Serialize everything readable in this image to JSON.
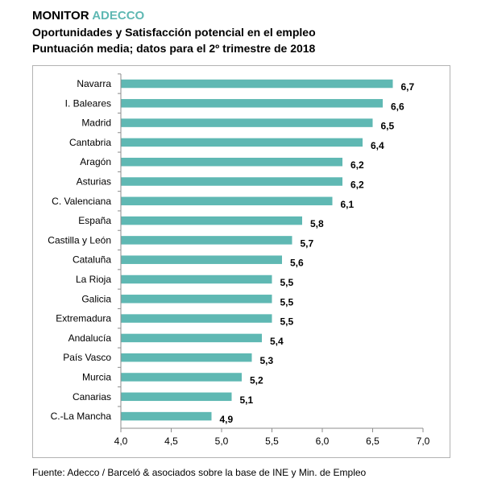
{
  "header": {
    "brand_main": "MONITOR",
    "brand_accent": "ADECCO",
    "title": "Oportunidades y Satisfacción potencial en el empleo",
    "subtitle": "Puntuación media; datos para el 2º trimestre de 2018"
  },
  "source": "Fuente: Adecco / Barceló & asociados sobre la base de INE y Min. de Empleo",
  "colors": {
    "bar": "#5fb8b3",
    "accent": "#5fb8b3",
    "axis": "#8c8c8c"
  },
  "chart_data": {
    "type": "bar",
    "orientation": "horizontal",
    "title": "Oportunidades y Satisfacción potencial en el empleo",
    "subtitle": "Puntuación media; datos para el 2º trimestre de 2018",
    "categories": [
      "Navarra",
      "I. Baleares",
      "Madrid",
      "Cantabria",
      "Aragón",
      "Asturias",
      "C. Valenciana",
      "España",
      "Castilla y León",
      "Cataluña",
      "La Rioja",
      "Galicia",
      "Extremadura",
      "Andalucía",
      "País Vasco",
      "Murcia",
      "Canarias",
      "C.-La Mancha"
    ],
    "values": [
      6.7,
      6.6,
      6.5,
      6.4,
      6.2,
      6.2,
      6.1,
      5.8,
      5.7,
      5.6,
      5.5,
      5.5,
      5.5,
      5.4,
      5.3,
      5.2,
      5.1,
      4.9
    ],
    "value_labels": [
      "6,7",
      "6,6",
      "6,5",
      "6,4",
      "6,2",
      "6,2",
      "6,1",
      "5,8",
      "5,7",
      "5,6",
      "5,5",
      "5,5",
      "5,5",
      "5,4",
      "5,3",
      "5,2",
      "5,1",
      "4,9"
    ],
    "xlim": [
      4.0,
      7.0
    ],
    "xticks": [
      4.0,
      4.5,
      5.0,
      5.5,
      6.0,
      6.5,
      7.0
    ],
    "xtick_labels": [
      "4,0",
      "4,5",
      "5,0",
      "5,5",
      "6,0",
      "6,5",
      "7,0"
    ],
    "xlabel": "",
    "ylabel": "",
    "grid": false,
    "legend": "none"
  }
}
